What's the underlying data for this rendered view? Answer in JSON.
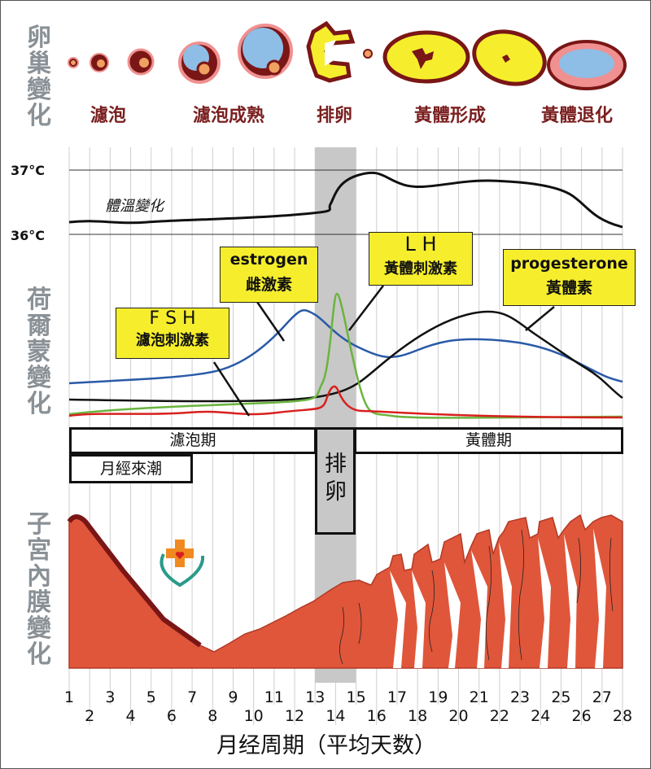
{
  "side_labels": {
    "ovary": "卵巢變化",
    "hormone": "荷爾蒙變化",
    "endometrium": "子宮內膜變化"
  },
  "ovary_stages": [
    "濾泡",
    "濾泡成熟",
    "排卵",
    "黃體形成",
    "黃體退化"
  ],
  "temperature": {
    "high": "37°C",
    "low": "36°C",
    "curve_label": "體溫變化"
  },
  "hormones": {
    "fsh": {
      "name": "F S H",
      "cn": "濾泡刺激素",
      "color": "#d8201e"
    },
    "estrogen": {
      "name": "estrogen",
      "cn": "雌激素",
      "color": "#2a5aa8"
    },
    "lh": {
      "name": "L H",
      "cn": "黃體刺激素",
      "color": "#6ab43e"
    },
    "progesterone": {
      "name": "progesterone",
      "cn": "黃體素",
      "color": "#111111"
    }
  },
  "phases": {
    "follicular": "濾泡期",
    "ovulation": "排卵",
    "luteal": "黃體期",
    "menstruation": "月經來潮"
  },
  "x_axis": {
    "ticks": [
      "1",
      "2",
      "3",
      "4",
      "5",
      "6",
      "7",
      "8",
      "9",
      "10",
      "11",
      "12",
      "13",
      "14",
      "15",
      "16",
      "17",
      "18",
      "19",
      "20",
      "21",
      "22",
      "23",
      "24",
      "25",
      "26",
      "27",
      "28"
    ],
    "title": "月经周期（平均天数）"
  },
  "colors": {
    "endometrium": "#e0563a",
    "ovulation_band": "#c8c8c8"
  }
}
